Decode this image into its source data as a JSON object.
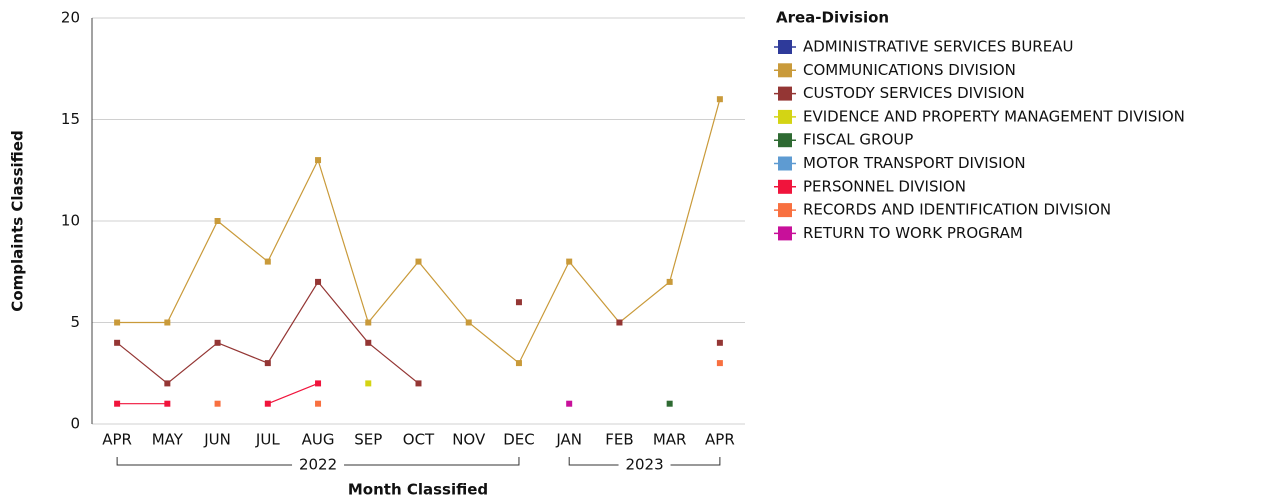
{
  "chart_data": {
    "type": "line",
    "y_label": "Complaints Classified",
    "x_label": "Month Classified",
    "legend_title": "Area-Division",
    "legend": "right",
    "grid": true,
    "categories": [
      "APR",
      "MAY",
      "JUN",
      "JUL",
      "AUG",
      "SEP",
      "OCT",
      "NOV",
      "DEC",
      "JAN",
      "FEB",
      "MAR",
      "APR"
    ],
    "x_groups": [
      {
        "label": "2022",
        "count": 9
      },
      {
        "label": "2023",
        "count": 4
      }
    ],
    "ylim": [
      0,
      20
    ],
    "yticks": [
      0,
      5,
      10,
      15,
      20
    ],
    "series": [
      {
        "name": "ADMINISTRATIVE SERVICES BUREAU",
        "color": "#2e3a9a",
        "values": [
          null,
          null,
          null,
          null,
          null,
          null,
          null,
          null,
          null,
          null,
          null,
          null,
          null
        ]
      },
      {
        "name": "COMMUNICATIONS DIVISION",
        "color": "#c99a3a",
        "values": [
          5,
          5,
          10,
          8,
          13,
          5,
          8,
          5,
          3,
          8,
          5,
          7,
          16
        ]
      },
      {
        "name": "CUSTODY SERVICES DIVISION",
        "color": "#943634",
        "values": [
          4,
          2,
          4,
          3,
          7,
          4,
          2,
          null,
          6,
          null,
          5,
          null,
          4
        ]
      },
      {
        "name": "EVIDENCE AND PROPERTY MANAGEMENT DIVISION",
        "color": "#d4d414",
        "values": [
          null,
          null,
          null,
          null,
          null,
          2,
          null,
          null,
          null,
          null,
          null,
          null,
          null
        ]
      },
      {
        "name": "FISCAL GROUP",
        "color": "#2e6a32",
        "values": [
          null,
          null,
          null,
          null,
          null,
          null,
          null,
          null,
          null,
          null,
          null,
          1,
          null
        ]
      },
      {
        "name": "MOTOR TRANSPORT DIVISION",
        "color": "#5e9bd2",
        "values": [
          null,
          null,
          null,
          null,
          null,
          null,
          null,
          null,
          null,
          null,
          null,
          null,
          null
        ]
      },
      {
        "name": "PERSONNEL DIVISION",
        "color": "#f0143c",
        "values": [
          1,
          1,
          null,
          1,
          2,
          null,
          null,
          null,
          null,
          null,
          null,
          null,
          null
        ]
      },
      {
        "name": "RECORDS AND IDENTIFICATION DIVISION",
        "color": "#f87040",
        "values": [
          null,
          null,
          1,
          null,
          1,
          null,
          null,
          null,
          null,
          null,
          null,
          null,
          3
        ]
      },
      {
        "name": "RETURN TO WORK PROGRAM",
        "color": "#c8109a",
        "values": [
          null,
          null,
          null,
          null,
          null,
          null,
          null,
          null,
          null,
          1,
          null,
          null,
          null
        ]
      }
    ]
  }
}
